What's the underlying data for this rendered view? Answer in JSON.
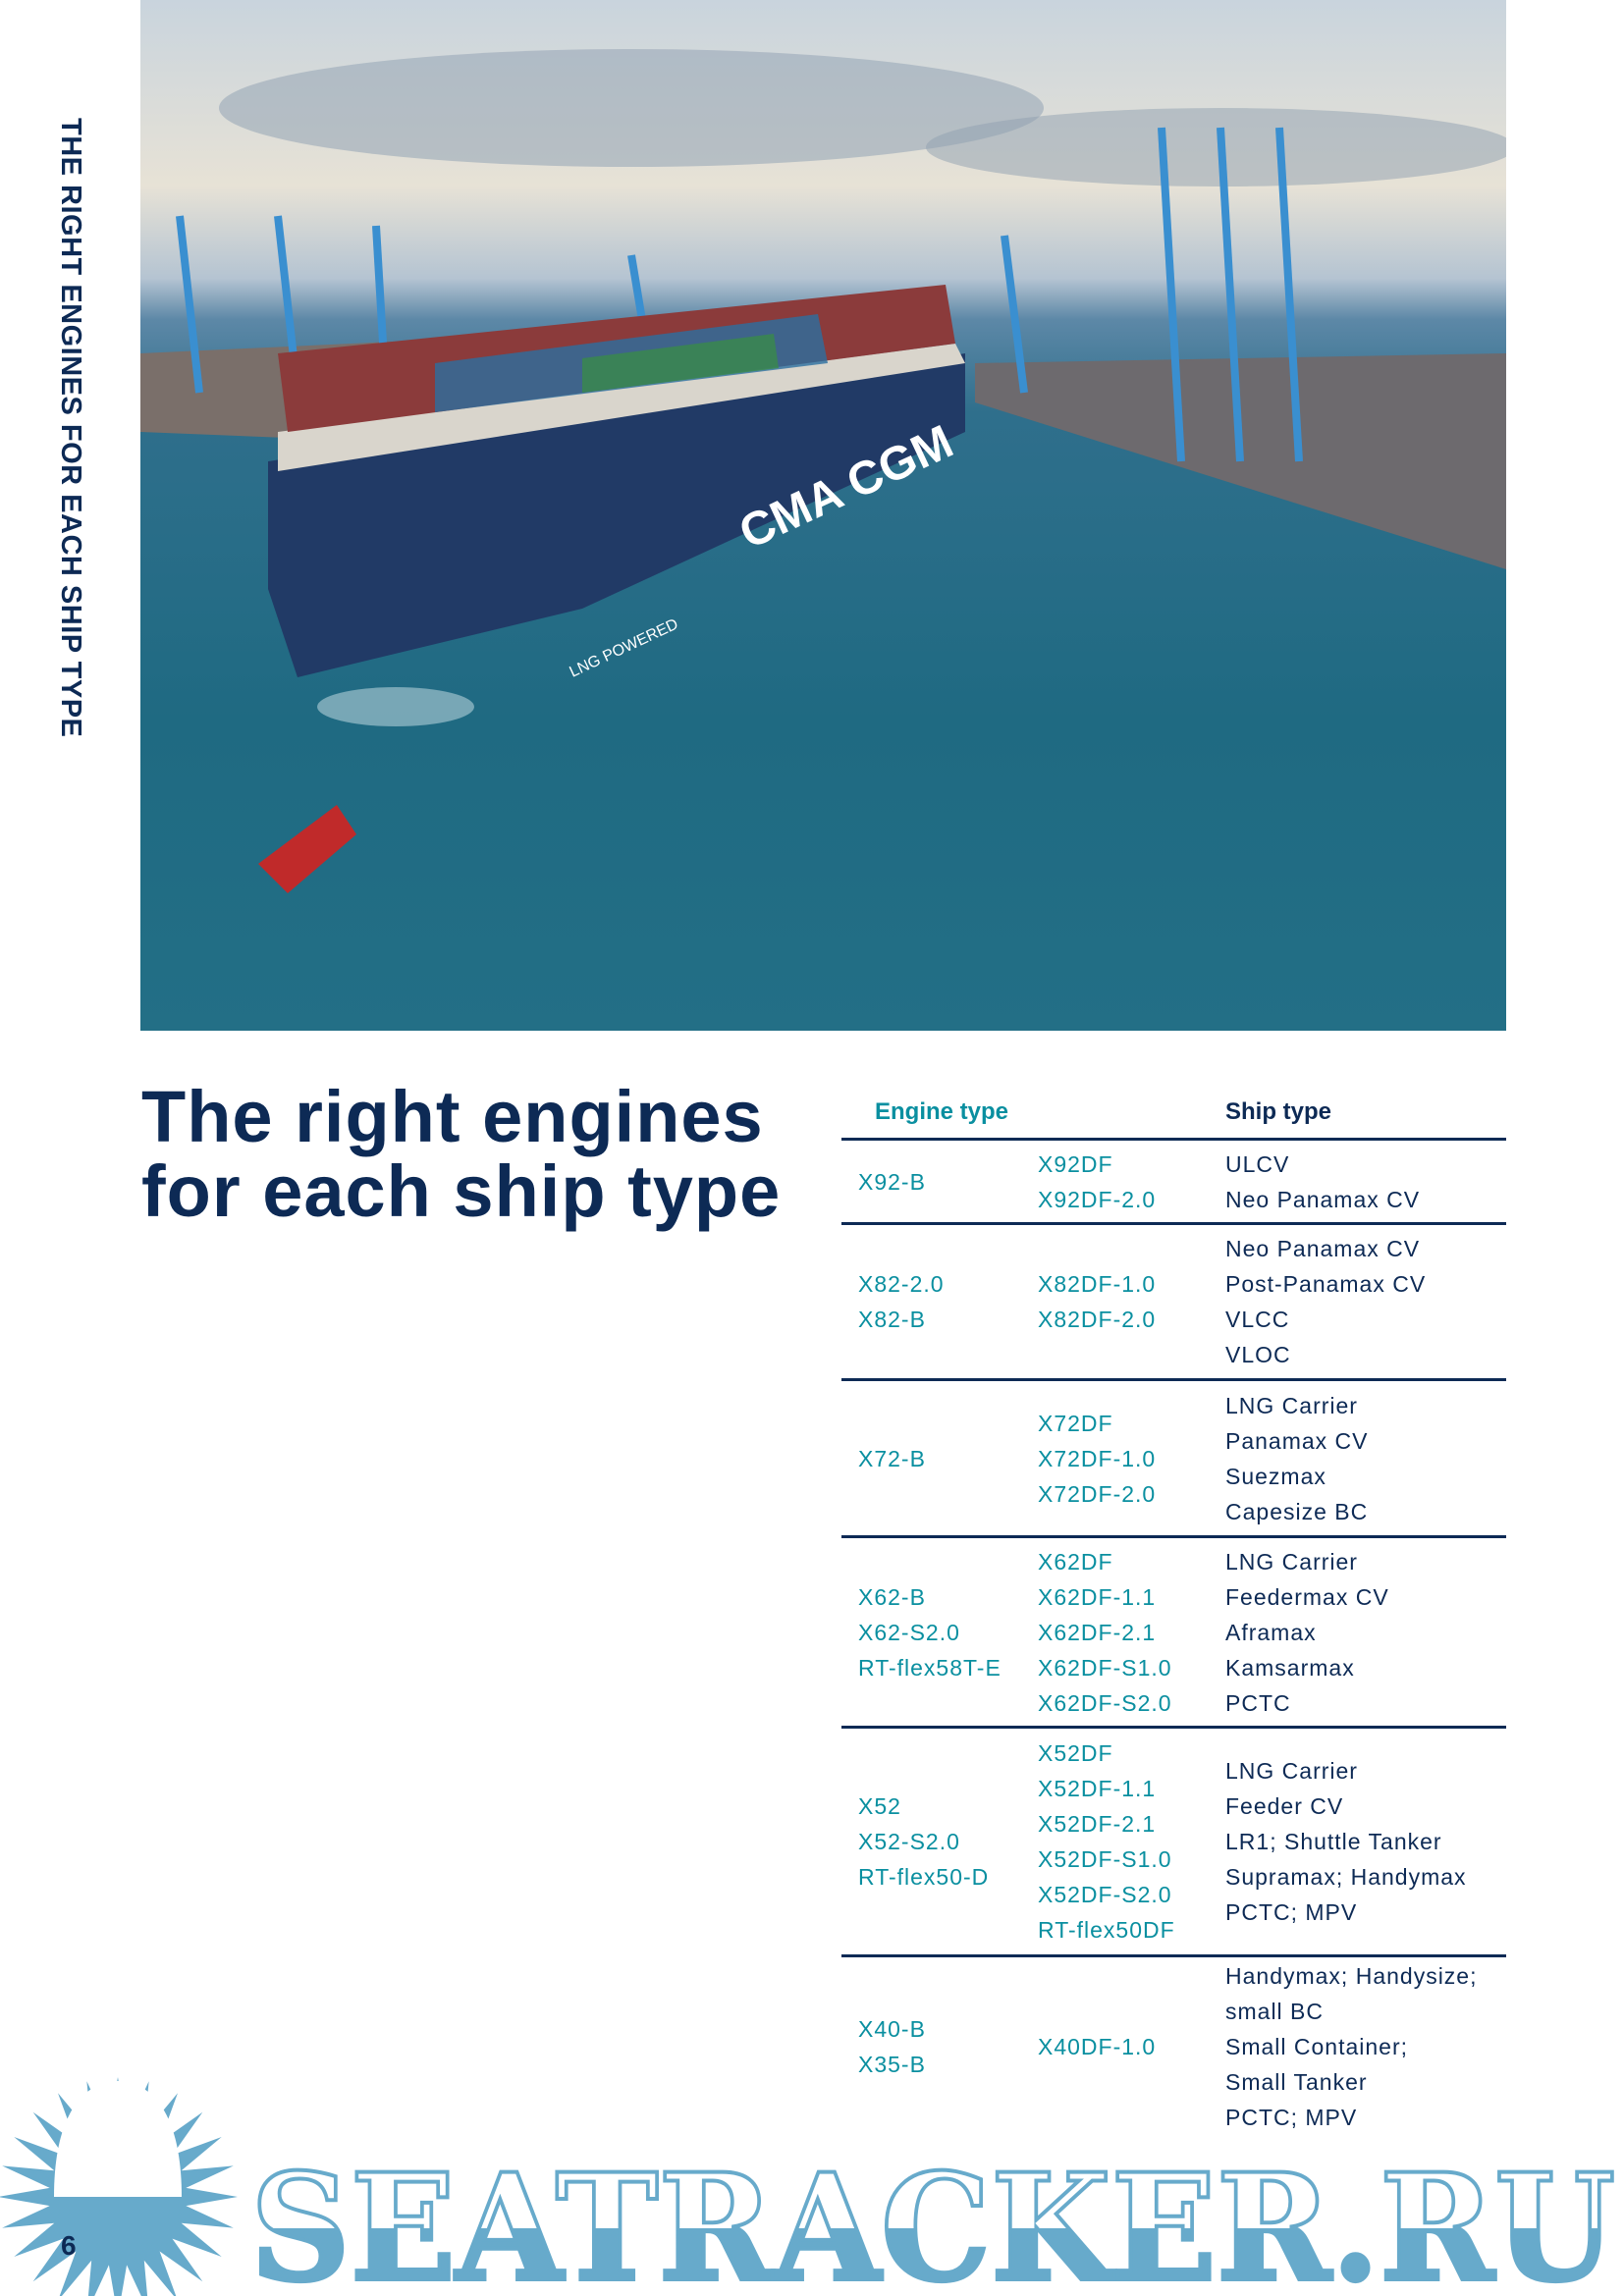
{
  "side_heading": "THE RIGHT ENGINES FOR EACH SHIP TYPE",
  "photo": {
    "ship_hull_text": "CMA CGM",
    "lng_text": "LNG POWERED"
  },
  "title": [
    "The right engines",
    "for each ship type"
  ],
  "table": {
    "headers": {
      "engine": "Engine type",
      "ship": "Ship type"
    },
    "rows": [
      {
        "engines": [
          "X92-B"
        ],
        "dual_fuel": [
          "X92DF",
          "X92DF-2.0"
        ],
        "ships": [
          "ULCV",
          "Neo Panamax CV"
        ]
      },
      {
        "engines": [
          "X82-2.0",
          "X82-B"
        ],
        "dual_fuel": [
          "X82DF-1.0",
          "X82DF-2.0"
        ],
        "ships": [
          "Neo Panamax CV",
          "Post-Panamax CV",
          "VLCC",
          "VLOC"
        ]
      },
      {
        "engines": [
          "X72-B"
        ],
        "dual_fuel": [
          "X72DF",
          "X72DF-1.0",
          "X72DF-2.0"
        ],
        "ships": [
          "LNG Carrier",
          "Panamax CV",
          "Suezmax",
          "Capesize BC"
        ]
      },
      {
        "engines": [
          "X62-B",
          "X62-S2.0",
          "RT-flex58T-E"
        ],
        "dual_fuel": [
          "X62DF",
          "X62DF-1.1",
          "X62DF-2.1",
          "X62DF-S1.0",
          "X62DF-S2.0"
        ],
        "ships": [
          "LNG Carrier",
          "Feedermax CV",
          "Aframax",
          "Kamsarmax",
          "PCTC"
        ]
      },
      {
        "engines": [
          "X52",
          "X52-S2.0",
          "RT-flex50-D"
        ],
        "dual_fuel": [
          "X52DF",
          "X52DF-1.1",
          "X52DF-2.1",
          "X52DF-S1.0",
          "X52DF-S2.0",
          "RT-flex50DF"
        ],
        "ships": [
          "LNG Carrier",
          "Feeder CV",
          "LR1; Shuttle Tanker",
          "Supramax; Handymax",
          "PCTC; MPV"
        ]
      },
      {
        "engines": [
          "X40-B",
          "X35-B"
        ],
        "dual_fuel": [
          "X40DF-1.0"
        ],
        "ships": [
          "Handymax; Handysize;",
          "small BC",
          "Small Container;",
          "Small Tanker",
          "PCTC; MPV"
        ]
      }
    ]
  },
  "watermark": "SEATRACKER.RU",
  "page_number": "6",
  "colors": {
    "navy": "#0d2a55",
    "teal": "#0a8fa0",
    "watermark": "#67aacb"
  }
}
